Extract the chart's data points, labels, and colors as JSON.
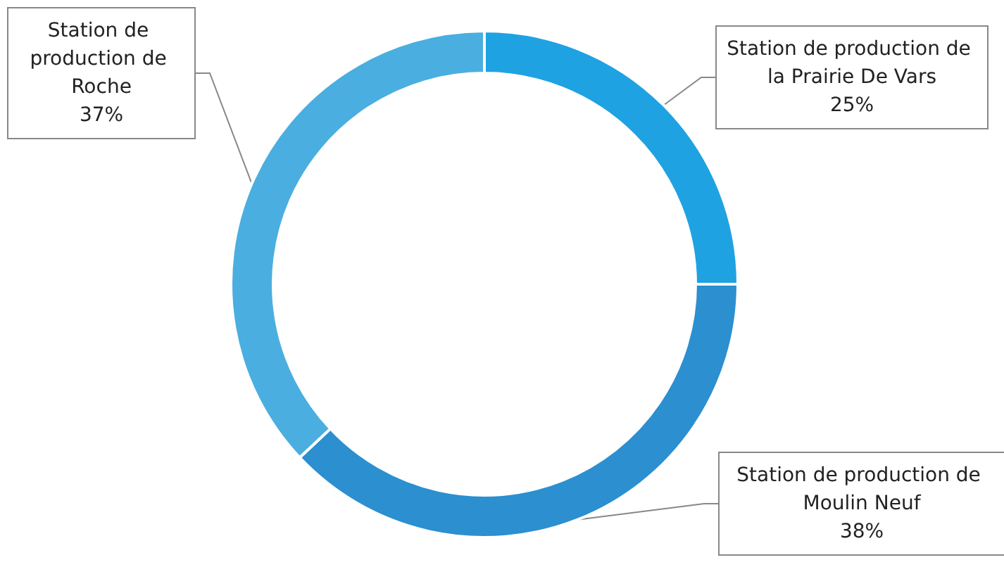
{
  "chart_data": {
    "type": "donut",
    "categories": [
      "Station de production de la Prairie De Vars",
      "Station de production de Moulin Neuf",
      "Station de production de Roche"
    ],
    "values": [
      25,
      38,
      37
    ],
    "value_labels": [
      "25%",
      "38%",
      "37%"
    ],
    "colors": [
      "#1fa2e2",
      "#2b8fd0",
      "#4aaee0"
    ],
    "legend": false
  }
}
